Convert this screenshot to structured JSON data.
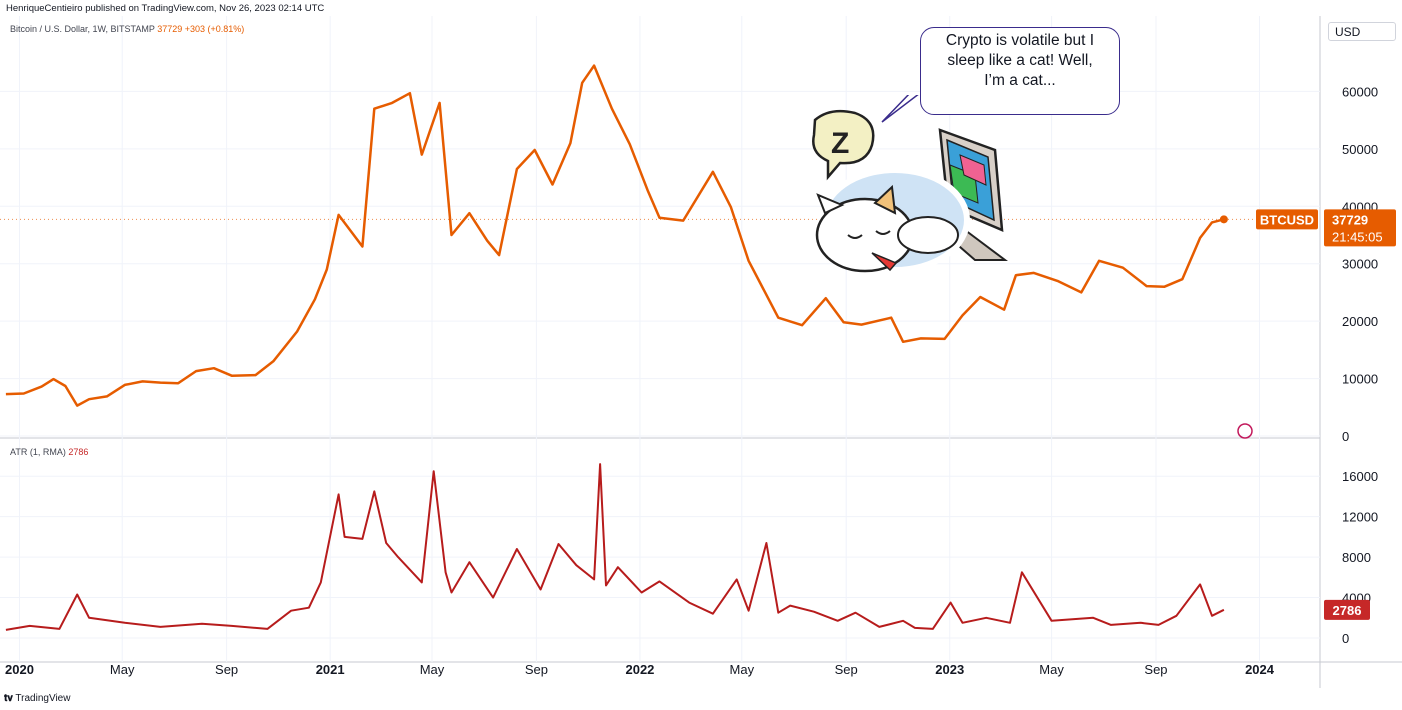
{
  "header": {
    "published_by": "HenriqueCentieiro published on TradingView.com, Nov 26, 2023 02:14 UTC"
  },
  "main_legend": {
    "symbol": "Bitcoin / U.S. Dollar, 1W, BITSTAMP",
    "value_text": "37729 +303 (+0.81%)"
  },
  "atr_legend": {
    "name": "ATR (1, RMA)",
    "value_text": "2786"
  },
  "currency": "USD",
  "price_tag": {
    "symbol": "BTCUSD",
    "price": "37729",
    "countdown": "21:45:05"
  },
  "atr_tag": "2786",
  "speech_bubble": "Crypto is volatile but I sleep like a cat! Well, I’m a cat...",
  "sticker_z": "Z",
  "footer": {
    "brand": "TradingView",
    "logo": "tradingview-logo-icon"
  },
  "colors": {
    "price_line": "#e65c00",
    "atr_line": "#b71c1c",
    "tag_orange": "#e65c00",
    "tag_red": "#c62828",
    "bubble_border": "#3a2c8c"
  },
  "chart_data": [
    {
      "type": "line",
      "title": "Bitcoin / U.S. Dollar, 1W, BITSTAMP",
      "x_tick_labels": [
        "2020",
        "May",
        "Sep",
        "2021",
        "May",
        "Sep",
        "2022",
        "May",
        "Sep",
        "2023",
        "May",
        "Sep",
        "2024"
      ],
      "y_tick_labels": [
        "0",
        "10000",
        "20000",
        "30000",
        "40000",
        "50000",
        "60000"
      ],
      "ylim": [
        0,
        70000
      ],
      "xlim": [
        "2019-12-09",
        "2024-03-04"
      ],
      "grid": true,
      "series": [
        {
          "name": "BTCUSD",
          "x": [
            "2019-12-16",
            "2020-01-06",
            "2020-01-27",
            "2020-02-10",
            "2020-02-24",
            "2020-03-09",
            "2020-03-23",
            "2020-04-13",
            "2020-05-04",
            "2020-05-25",
            "2020-06-15",
            "2020-07-06",
            "2020-07-27",
            "2020-08-17",
            "2020-09-07",
            "2020-10-05",
            "2020-10-26",
            "2020-11-23",
            "2020-12-14",
            "2020-12-28",
            "2021-01-11",
            "2021-02-08",
            "2021-02-22",
            "2021-03-15",
            "2021-04-05",
            "2021-04-19",
            "2021-05-10",
            "2021-05-24",
            "2021-06-14",
            "2021-07-05",
            "2021-07-19",
            "2021-08-09",
            "2021-08-30",
            "2021-09-20",
            "2021-10-11",
            "2021-10-25",
            "2021-11-08",
            "2021-11-29",
            "2021-12-20",
            "2022-01-10",
            "2022-01-24",
            "2022-02-21",
            "2022-03-28",
            "2022-04-18",
            "2022-05-09",
            "2022-06-13",
            "2022-07-11",
            "2022-08-08",
            "2022-08-29",
            "2022-09-19",
            "2022-10-24",
            "2022-11-07",
            "2022-11-28",
            "2022-12-26",
            "2023-01-16",
            "2023-02-06",
            "2023-03-06",
            "2023-03-20",
            "2023-04-10",
            "2023-05-08",
            "2023-06-05",
            "2023-06-26",
            "2023-07-24",
            "2023-08-21",
            "2023-09-11",
            "2023-10-02",
            "2023-10-23",
            "2023-11-06",
            "2023-11-20"
          ],
          "values": [
            7300,
            7400,
            8600,
            9900,
            8700,
            5300,
            6400,
            6900,
            8900,
            9500,
            9300,
            9200,
            11300,
            11800,
            10500,
            10600,
            13000,
            18200,
            23800,
            29000,
            38500,
            33000,
            57000,
            58000,
            59700,
            49000,
            58000,
            35000,
            38800,
            34000,
            31500,
            46500,
            49800,
            43800,
            51000,
            61500,
            64500,
            57000,
            50800,
            42800,
            38000,
            37500,
            46000,
            39900,
            30500,
            20600,
            19300,
            24000,
            19800,
            19400,
            20600,
            16400,
            17000,
            16900,
            21000,
            24200,
            22000,
            28000,
            28400,
            27000,
            25000,
            30500,
            29300,
            26100,
            26000,
            27300,
            34500,
            37200,
            37729
          ]
        }
      ]
    },
    {
      "type": "line",
      "title": "ATR (1, RMA)",
      "y_tick_labels": [
        "0",
        "4000",
        "8000",
        "12000",
        "16000"
      ],
      "ylim": [
        0,
        18000
      ],
      "grid": true,
      "series": [
        {
          "name": "ATR (1, RMA)",
          "x": [
            "2019-12-16",
            "2020-01-13",
            "2020-02-17",
            "2020-03-09",
            "2020-03-23",
            "2020-05-04",
            "2020-06-15",
            "2020-08-03",
            "2020-09-07",
            "2020-10-19",
            "2020-11-16",
            "2020-12-07",
            "2020-12-21",
            "2021-01-11",
            "2021-01-18",
            "2021-02-08",
            "2021-02-22",
            "2021-03-08",
            "2021-03-22",
            "2021-04-19",
            "2021-05-03",
            "2021-05-17",
            "2021-05-24",
            "2021-06-14",
            "2021-07-12",
            "2021-08-09",
            "2021-09-06",
            "2021-09-27",
            "2021-10-18",
            "2021-11-08",
            "2021-11-15",
            "2021-11-22",
            "2021-12-06",
            "2022-01-03",
            "2022-01-24",
            "2022-02-28",
            "2022-03-28",
            "2022-04-25",
            "2022-05-09",
            "2022-05-30",
            "2022-06-13",
            "2022-06-27",
            "2022-07-25",
            "2022-08-22",
            "2022-09-12",
            "2022-10-10",
            "2022-11-07",
            "2022-11-21",
            "2022-12-12",
            "2023-01-02",
            "2023-01-16",
            "2023-02-13",
            "2023-03-13",
            "2023-03-27",
            "2023-05-01",
            "2023-06-19",
            "2023-07-10",
            "2023-08-14",
            "2023-09-04",
            "2023-09-25",
            "2023-10-23",
            "2023-11-06",
            "2023-11-20"
          ],
          "values": [
            800,
            1200,
            900,
            4300,
            2000,
            1500,
            1100,
            1400,
            1200,
            900,
            2700,
            3000,
            5500,
            14200,
            10000,
            9800,
            14500,
            9400,
            8000,
            5500,
            16500,
            6500,
            4500,
            7500,
            4000,
            8800,
            4800,
            9300,
            7200,
            5800,
            17200,
            5200,
            7000,
            4500,
            5600,
            3500,
            2400,
            5800,
            2700,
            9400,
            2500,
            3200,
            2600,
            1700,
            2500,
            1100,
            1700,
            1000,
            900,
            3500,
            1500,
            2000,
            1500,
            6500,
            1700,
            2000,
            1300,
            1500,
            1300,
            2200,
            5300,
            2200,
            2786
          ]
        }
      ]
    }
  ]
}
